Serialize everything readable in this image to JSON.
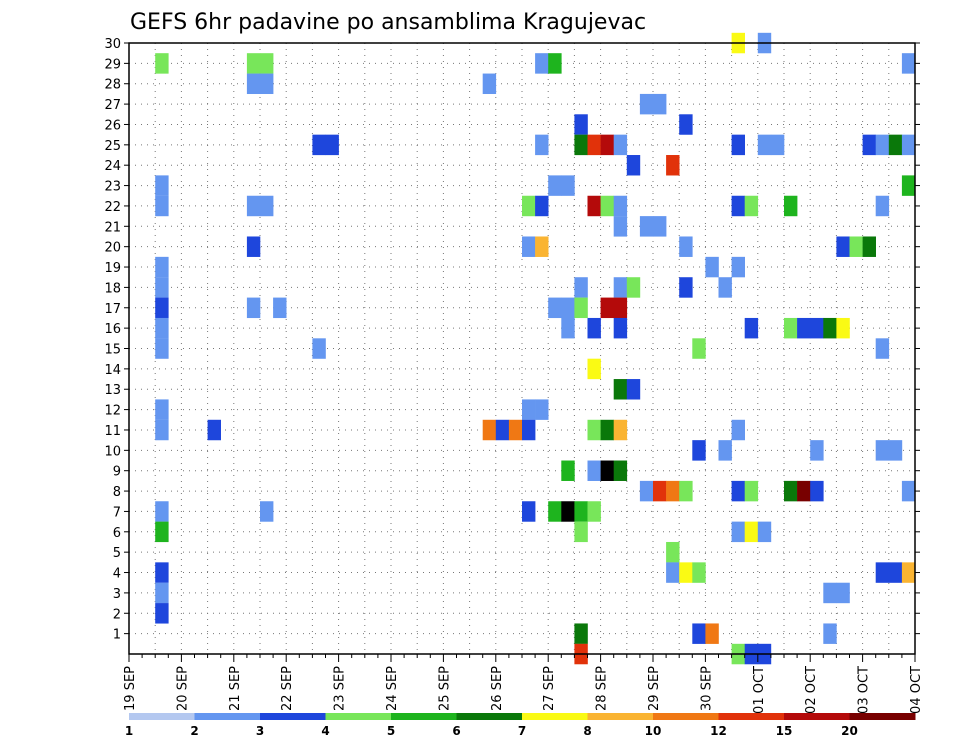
{
  "chart_data": {
    "type": "heatmap",
    "title": "GEFS 6hr padavine po ansamblima Kragujevac",
    "xlabel": "",
    "ylabel": "",
    "x_ticks": [
      "19 SEP",
      "20 SEP",
      "21 SEP",
      "22 SEP",
      "23 SEP",
      "24 SEP",
      "25 SEP",
      "26 SEP",
      "27 SEP",
      "28 SEP",
      "29 SEP",
      "30 SEP",
      "01 OCT",
      "02 OCT",
      "03 OCT",
      "04 OCT"
    ],
    "y_ticks": [
      "1",
      "2",
      "3",
      "4",
      "5",
      "6",
      "7",
      "8",
      "9",
      "10",
      "11",
      "12",
      "13",
      "14",
      "15",
      "16",
      "17",
      "18",
      "19",
      "20",
      "21",
      "22",
      "23",
      "24",
      "25",
      "26",
      "27",
      "28",
      "29",
      "30"
    ],
    "x_range": [
      0,
      60
    ],
    "y_range": [
      0,
      30
    ],
    "grid": true,
    "legend_position": "bottom",
    "legend_labels": [
      "1",
      "2",
      "3",
      "4",
      "5",
      "6",
      "7",
      "8",
      "10",
      "12",
      "15",
      "20"
    ],
    "legend_colors": [
      "#b4c8f0",
      "#6496f0",
      "#1e46dc",
      "#78e65a",
      "#1eb41e",
      "#0a780a",
      "#fafa14",
      "#fab432",
      "#f07814",
      "#e1320a",
      "#b40a0a",
      "#780000"
    ],
    "series_note": "",
    "cells": [
      {
        "x": 2.5,
        "y": 29,
        "c": 3
      },
      {
        "x": 2.5,
        "y": 23,
        "c": 1
      },
      {
        "x": 2.5,
        "y": 22,
        "c": 1
      },
      {
        "x": 2.5,
        "y": 19,
        "c": 1
      },
      {
        "x": 2.5,
        "y": 18,
        "c": 1
      },
      {
        "x": 2.5,
        "y": 17,
        "c": 2
      },
      {
        "x": 2.5,
        "y": 16,
        "c": 1
      },
      {
        "x": 2.5,
        "y": 15,
        "c": 1
      },
      {
        "x": 2.5,
        "y": 12,
        "c": 1
      },
      {
        "x": 2.5,
        "y": 11,
        "c": 1
      },
      {
        "x": 2.5,
        "y": 7,
        "c": 1
      },
      {
        "x": 2.5,
        "y": 6,
        "c": 4
      },
      {
        "x": 2.5,
        "y": 4,
        "c": 2
      },
      {
        "x": 2.5,
        "y": 3,
        "c": 1
      },
      {
        "x": 2.5,
        "y": 2,
        "c": 2
      },
      {
        "x": 6.5,
        "y": 11,
        "c": 2
      },
      {
        "x": 9.5,
        "y": 29,
        "c": 3
      },
      {
        "x": 10.5,
        "y": 29,
        "c": 3
      },
      {
        "x": 9.5,
        "y": 28,
        "c": 1
      },
      {
        "x": 10.5,
        "y": 28,
        "c": 1
      },
      {
        "x": 9.5,
        "y": 22,
        "c": 1
      },
      {
        "x": 10.5,
        "y": 22,
        "c": 1
      },
      {
        "x": 9.5,
        "y": 20,
        "c": 2
      },
      {
        "x": 9.5,
        "y": 17,
        "c": 1
      },
      {
        "x": 11.5,
        "y": 17,
        "c": 1
      },
      {
        "x": 10.5,
        "y": 7,
        "c": 1
      },
      {
        "x": 14.5,
        "y": 25,
        "c": 2
      },
      {
        "x": 15.5,
        "y": 25,
        "c": 2
      },
      {
        "x": 14.5,
        "y": 15,
        "c": 1
      },
      {
        "x": 27.5,
        "y": 28,
        "c": 1
      },
      {
        "x": 27.5,
        "y": 11,
        "c": 8
      },
      {
        "x": 28.5,
        "y": 11,
        "c": 2
      },
      {
        "x": 29.5,
        "y": 11,
        "c": 8
      },
      {
        "x": 30.5,
        "y": 22,
        "c": 3
      },
      {
        "x": 30.5,
        "y": 20,
        "c": 1
      },
      {
        "x": 30.5,
        "y": 12,
        "c": 1
      },
      {
        "x": 30.5,
        "y": 11,
        "c": 2
      },
      {
        "x": 30.5,
        "y": 7,
        "c": 2
      },
      {
        "x": 31.5,
        "y": 29,
        "c": 1
      },
      {
        "x": 31.5,
        "y": 25,
        "c": 1
      },
      {
        "x": 31.5,
        "y": 22,
        "c": 2
      },
      {
        "x": 31.5,
        "y": 20,
        "c": 7
      },
      {
        "x": 31.5,
        "y": 12,
        "c": 1
      },
      {
        "x": 32.5,
        "y": 29,
        "c": 4
      },
      {
        "x": 32.5,
        "y": 23,
        "c": 1
      },
      {
        "x": 32.5,
        "y": 17,
        "c": 1
      },
      {
        "x": 32.5,
        "y": 7,
        "c": 4
      },
      {
        "x": 33.5,
        "y": 23,
        "c": 1
      },
      {
        "x": 33.5,
        "y": 17,
        "c": 1
      },
      {
        "x": 33.5,
        "y": 16,
        "c": 1
      },
      {
        "x": 33.5,
        "y": 9,
        "c": 4
      },
      {
        "x": 33.5,
        "y": 7,
        "c": 12
      },
      {
        "x": 34.5,
        "y": 26,
        "c": 2
      },
      {
        "x": 34.5,
        "y": 25,
        "c": 5
      },
      {
        "x": 34.5,
        "y": 18,
        "c": 1
      },
      {
        "x": 34.5,
        "y": 17,
        "c": 3
      },
      {
        "x": 34.5,
        "y": 7,
        "c": 4
      },
      {
        "x": 34.5,
        "y": 6,
        "c": 3
      },
      {
        "x": 34.5,
        "y": 1,
        "c": 5
      },
      {
        "x": 34.5,
        "y": 0,
        "c": 9
      },
      {
        "x": 35.5,
        "y": 25,
        "c": 9
      },
      {
        "x": 35.5,
        "y": 22,
        "c": 10
      },
      {
        "x": 35.5,
        "y": 16,
        "c": 2
      },
      {
        "x": 35.5,
        "y": 14,
        "c": 6
      },
      {
        "x": 35.5,
        "y": 11,
        "c": 3
      },
      {
        "x": 35.5,
        "y": 9,
        "c": 1
      },
      {
        "x": 35.5,
        "y": 7,
        "c": 3
      },
      {
        "x": 36.5,
        "y": 25,
        "c": 10
      },
      {
        "x": 36.5,
        "y": 22,
        "c": 3
      },
      {
        "x": 36.5,
        "y": 17,
        "c": 10
      },
      {
        "x": 36.5,
        "y": 11,
        "c": 5
      },
      {
        "x": 36.5,
        "y": 9,
        "c": 12
      },
      {
        "x": 37.5,
        "y": 25,
        "c": 1
      },
      {
        "x": 37.5,
        "y": 22,
        "c": 1
      },
      {
        "x": 37.5,
        "y": 21,
        "c": 1
      },
      {
        "x": 37.5,
        "y": 18,
        "c": 1
      },
      {
        "x": 37.5,
        "y": 17,
        "c": 10
      },
      {
        "x": 37.5,
        "y": 16,
        "c": 2
      },
      {
        "x": 37.5,
        "y": 13,
        "c": 5
      },
      {
        "x": 37.5,
        "y": 11,
        "c": 7
      },
      {
        "x": 37.5,
        "y": 9,
        "c": 5
      },
      {
        "x": 38.5,
        "y": 24,
        "c": 2
      },
      {
        "x": 38.5,
        "y": 18,
        "c": 3
      },
      {
        "x": 38.5,
        "y": 13,
        "c": 2
      },
      {
        "x": 39.5,
        "y": 27,
        "c": 1
      },
      {
        "x": 40.5,
        "y": 27,
        "c": 1
      },
      {
        "x": 39.5,
        "y": 21,
        "c": 1
      },
      {
        "x": 40.5,
        "y": 21,
        "c": 1
      },
      {
        "x": 39.5,
        "y": 8,
        "c": 1
      },
      {
        "x": 40.5,
        "y": 8,
        "c": 9
      },
      {
        "x": 41.5,
        "y": 8,
        "c": 8
      },
      {
        "x": 41.5,
        "y": 24,
        "c": 9
      },
      {
        "x": 41.5,
        "y": 5,
        "c": 3
      },
      {
        "x": 41.5,
        "y": 4,
        "c": 1
      },
      {
        "x": 42.5,
        "y": 26,
        "c": 2
      },
      {
        "x": 42.5,
        "y": 20,
        "c": 1
      },
      {
        "x": 42.5,
        "y": 18,
        "c": 2
      },
      {
        "x": 42.5,
        "y": 8,
        "c": 3
      },
      {
        "x": 42.5,
        "y": 4,
        "c": 6
      },
      {
        "x": 43.5,
        "y": 15,
        "c": 3
      },
      {
        "x": 43.5,
        "y": 10,
        "c": 2
      },
      {
        "x": 43.5,
        "y": 4,
        "c": 3
      },
      {
        "x": 43.5,
        "y": 1,
        "c": 2
      },
      {
        "x": 44.5,
        "y": 19,
        "c": 1
      },
      {
        "x": 44.5,
        "y": 1,
        "c": 8
      },
      {
        "x": 45.5,
        "y": 18,
        "c": 1
      },
      {
        "x": 45.5,
        "y": 10,
        "c": 1
      },
      {
        "x": 46.5,
        "y": 30,
        "c": 6
      },
      {
        "x": 46.5,
        "y": 25,
        "c": 2
      },
      {
        "x": 46.5,
        "y": 22,
        "c": 2
      },
      {
        "x": 46.5,
        "y": 19,
        "c": 1
      },
      {
        "x": 46.5,
        "y": 11,
        "c": 1
      },
      {
        "x": 46.5,
        "y": 8,
        "c": 2
      },
      {
        "x": 46.5,
        "y": 6,
        "c": 1
      },
      {
        "x": 46.5,
        "y": 0,
        "c": 3
      },
      {
        "x": 47.5,
        "y": 22,
        "c": 3
      },
      {
        "x": 47.5,
        "y": 16,
        "c": 2
      },
      {
        "x": 47.5,
        "y": 8,
        "c": 3
      },
      {
        "x": 47.5,
        "y": 6,
        "c": 6
      },
      {
        "x": 47.5,
        "y": 0,
        "c": 2
      },
      {
        "x": 48.5,
        "y": 30,
        "c": 1
      },
      {
        "x": 48.5,
        "y": 25,
        "c": 1
      },
      {
        "x": 48.5,
        "y": 6,
        "c": 1
      },
      {
        "x": 48.5,
        "y": 0,
        "c": 2
      },
      {
        "x": 49.5,
        "y": 25,
        "c": 1
      },
      {
        "x": 50.5,
        "y": 22,
        "c": 4
      },
      {
        "x": 50.5,
        "y": 16,
        "c": 3
      },
      {
        "x": 50.5,
        "y": 8,
        "c": 5
      },
      {
        "x": 51.5,
        "y": 16,
        "c": 2
      },
      {
        "x": 51.5,
        "y": 8,
        "c": 11
      },
      {
        "x": 52.5,
        "y": 16,
        "c": 2
      },
      {
        "x": 52.5,
        "y": 10,
        "c": 1
      },
      {
        "x": 52.5,
        "y": 8,
        "c": 2
      },
      {
        "x": 53.5,
        "y": 16,
        "c": 5
      },
      {
        "x": 53.5,
        "y": 3,
        "c": 1
      },
      {
        "x": 53.5,
        "y": 1,
        "c": 1
      },
      {
        "x": 54.5,
        "y": 16,
        "c": 6
      },
      {
        "x": 54.5,
        "y": 20,
        "c": 2
      },
      {
        "x": 54.5,
        "y": 3,
        "c": 1
      },
      {
        "x": 55.5,
        "y": 20,
        "c": 3
      },
      {
        "x": 56.5,
        "y": 25,
        "c": 2
      },
      {
        "x": 56.5,
        "y": 20,
        "c": 5
      },
      {
        "x": 57.5,
        "y": 25,
        "c": 1
      },
      {
        "x": 57.5,
        "y": 22,
        "c": 1
      },
      {
        "x": 57.5,
        "y": 15,
        "c": 1
      },
      {
        "x": 57.5,
        "y": 10,
        "c": 1
      },
      {
        "x": 57.5,
        "y": 4,
        "c": 2
      },
      {
        "x": 58.5,
        "y": 25,
        "c": 5
      },
      {
        "x": 58.5,
        "y": 10,
        "c": 1
      },
      {
        "x": 58.5,
        "y": 4,
        "c": 2
      },
      {
        "x": 59.5,
        "y": 29,
        "c": 1
      },
      {
        "x": 59.5,
        "y": 25,
        "c": 1
      },
      {
        "x": 59.5,
        "y": 23,
        "c": 4
      },
      {
        "x": 59.5,
        "y": 8,
        "c": 1
      },
      {
        "x": 59.5,
        "y": 4,
        "c": 7
      }
    ]
  }
}
